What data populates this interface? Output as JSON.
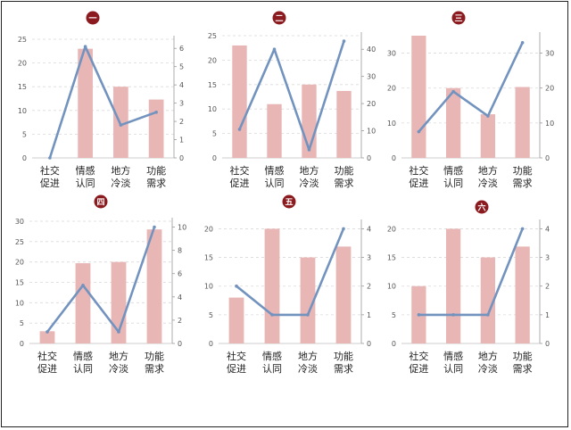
{
  "colors": {
    "bar": "#e9b6b6",
    "line": "#7393bf",
    "badge": "#8b1b1f",
    "badge_text": "#ffffff",
    "axis_text": "#555555",
    "grid": "#d9d9d9",
    "cat_text": "#222222"
  },
  "chart_data": [
    {
      "type": "bar",
      "title": "一",
      "categories": [
        [
          "社交",
          "促进"
        ],
        [
          "情感",
          "认同"
        ],
        [
          "地方",
          "冷淡"
        ],
        [
          "功能",
          "需求"
        ]
      ],
      "series": [
        {
          "kind": "bar",
          "axis": "left",
          "values": [
            0,
            23,
            15,
            12.3
          ]
        },
        {
          "kind": "line",
          "axis": "right",
          "values": [
            0,
            6.1,
            1.8,
            2.5
          ]
        }
      ],
      "ylim_left": [
        0,
        25
      ],
      "yticks_left": [
        0,
        5,
        10,
        15,
        20,
        25
      ],
      "ylim_right": [
        0,
        6.5
      ],
      "yticks_right": [
        0,
        1,
        2,
        3,
        4,
        5,
        6
      ],
      "grid": true
    },
    {
      "type": "bar",
      "title": "二",
      "categories": [
        [
          "社交",
          "促进"
        ],
        [
          "情感",
          "认同"
        ],
        [
          "地方",
          "冷淡"
        ],
        [
          "功能",
          "需求"
        ]
      ],
      "series": [
        {
          "kind": "bar",
          "axis": "left",
          "values": [
            23,
            11,
            15,
            13.7
          ]
        },
        {
          "kind": "line",
          "axis": "right",
          "values": [
            10.5,
            40,
            3,
            43
          ]
        }
      ],
      "ylim_left": [
        0,
        25
      ],
      "yticks_left": [
        0,
        5,
        10,
        15,
        20,
        25
      ],
      "ylim_right": [
        0,
        45
      ],
      "yticks_right": [
        0,
        10,
        20,
        30,
        40
      ],
      "grid": true
    },
    {
      "type": "bar",
      "title": "三",
      "categories": [
        [
          "社交",
          "促进"
        ],
        [
          "情感",
          "认同"
        ],
        [
          "地方",
          "冷淡"
        ],
        [
          "功能",
          "需求"
        ]
      ],
      "series": [
        {
          "kind": "bar",
          "axis": "left",
          "values": [
            35,
            20,
            12.5,
            20.3
          ]
        },
        {
          "kind": "line",
          "axis": "right",
          "values": [
            7.5,
            19,
            12,
            33
          ]
        }
      ],
      "ylim_left": [
        0,
        35
      ],
      "yticks_left": [
        0,
        10,
        20,
        30
      ],
      "ylim_right": [
        0,
        35
      ],
      "yticks_right": [
        0,
        10,
        20,
        30
      ],
      "grid": true
    },
    {
      "type": "bar",
      "title": "四",
      "categories": [
        [
          "社交",
          "促进"
        ],
        [
          "情感",
          "认同"
        ],
        [
          "地方",
          "冷淡"
        ],
        [
          "功能",
          "需求"
        ]
      ],
      "series": [
        {
          "kind": "bar",
          "axis": "left",
          "values": [
            3,
            19.7,
            20,
            28
          ]
        },
        {
          "kind": "line",
          "axis": "right",
          "values": [
            1,
            5,
            1,
            10
          ]
        }
      ],
      "ylim_left": [
        0,
        30
      ],
      "yticks_left": [
        0,
        5,
        10,
        15,
        20,
        25,
        30
      ],
      "ylim_right": [
        0,
        10.5
      ],
      "yticks_right": [
        0,
        2,
        4,
        6,
        8,
        10
      ],
      "grid": true
    },
    {
      "type": "bar",
      "title": "五",
      "categories": [
        [
          "社交",
          "促进"
        ],
        [
          "情感",
          "认同"
        ],
        [
          "地方",
          "冷淡"
        ],
        [
          "功能",
          "需求"
        ]
      ],
      "series": [
        {
          "kind": "bar",
          "axis": "left",
          "values": [
            8,
            20,
            15,
            16.9
          ]
        },
        {
          "kind": "line",
          "axis": "right",
          "values": [
            2,
            1,
            1,
            4
          ]
        }
      ],
      "ylim_left": [
        0,
        21
      ],
      "yticks_left": [
        0,
        5,
        10,
        15,
        20
      ],
      "ylim_right": [
        0,
        4.2
      ],
      "yticks_right": [
        0,
        1,
        2,
        3,
        4
      ],
      "grid": true
    },
    {
      "type": "bar",
      "title": "六",
      "categories": [
        [
          "社交",
          "促进"
        ],
        [
          "情感",
          "认同"
        ],
        [
          "地方",
          "冷淡"
        ],
        [
          "功能",
          "需求"
        ]
      ],
      "series": [
        {
          "kind": "bar",
          "axis": "left",
          "values": [
            10,
            20,
            15,
            16.9
          ]
        },
        {
          "kind": "line",
          "axis": "right",
          "values": [
            1,
            1,
            1,
            4
          ]
        }
      ],
      "ylim_left": [
        0,
        21
      ],
      "yticks_left": [
        0,
        5,
        10,
        15,
        20
      ],
      "ylim_right": [
        0,
        4.2
      ],
      "yticks_right": [
        0,
        1,
        2,
        3,
        4
      ],
      "grid": true
    }
  ]
}
